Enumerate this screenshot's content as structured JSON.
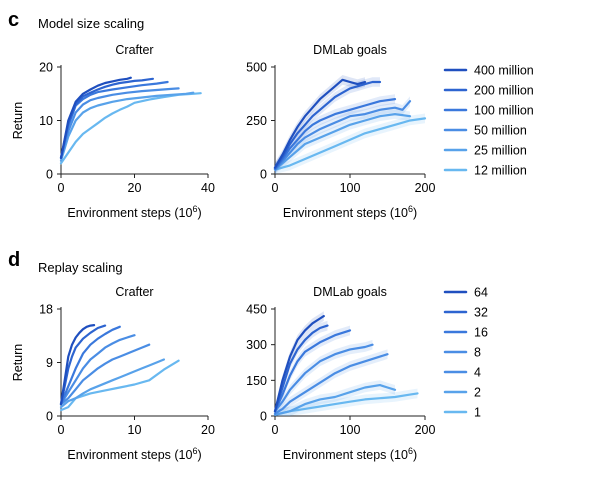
{
  "panels": [
    {
      "letter": "c",
      "title": "Model size scaling"
    },
    {
      "letter": "d",
      "title": "Replay scaling"
    }
  ],
  "xlabel_main": "Environment steps (10",
  "xlabel_exp": "6",
  "xlabel_close": ")",
  "ylabel": "Return",
  "colors": [
    "#1f4fbf",
    "#2d64d0",
    "#3a78dc",
    "#4a8de4",
    "#58a2ea",
    "#68b8f0"
  ],
  "chart_data": [
    {
      "type": "line",
      "id": "c-crafter",
      "title": "Crafter",
      "xlim": [
        0,
        40
      ],
      "xticks": [
        0,
        20,
        40
      ],
      "ylim": [
        0,
        20
      ],
      "yticks": [
        0,
        10,
        20
      ],
      "legend": [
        "400 million",
        "200 million",
        "100 million",
        "50 million",
        "25 million",
        "12 million"
      ],
      "series": [
        {
          "name": "400 million",
          "x": [
            0,
            2,
            4,
            6,
            8,
            10,
            12,
            14,
            16,
            18,
            19
          ],
          "y": [
            3,
            10,
            13.5,
            15,
            15.8,
            16.5,
            17,
            17.3,
            17.6,
            17.8,
            18
          ]
        },
        {
          "name": "200 million",
          "x": [
            0,
            2,
            4,
            6,
            8,
            10,
            12,
            14,
            16,
            18,
            20,
            22,
            24,
            25
          ],
          "y": [
            3,
            9.5,
            13,
            14.5,
            15.2,
            15.8,
            16.3,
            16.7,
            17,
            17.2,
            17.4,
            17.5,
            17.7,
            17.8
          ]
        },
        {
          "name": "100 million",
          "x": [
            0,
            2,
            4,
            6,
            8,
            10,
            14,
            18,
            22,
            26,
            29
          ],
          "y": [
            3,
            9,
            12.8,
            14,
            14.8,
            15.3,
            15.8,
            16.2,
            16.6,
            16.9,
            17.2
          ]
        },
        {
          "name": "50 million",
          "x": [
            0,
            2,
            4,
            6,
            8,
            10,
            14,
            18,
            22,
            26,
            30,
            32
          ],
          "y": [
            3,
            8,
            11.5,
            13,
            13.8,
            14.2,
            14.8,
            15.2,
            15.5,
            15.7,
            15.9,
            16
          ]
        },
        {
          "name": "25 million",
          "x": [
            0,
            2,
            4,
            6,
            8,
            10,
            14,
            18,
            22,
            26,
            30,
            34,
            36
          ],
          "y": [
            2.5,
            7,
            10,
            11.5,
            12.3,
            12.8,
            13.5,
            14,
            14.3,
            14.6,
            14.8,
            15,
            15.2
          ]
        },
        {
          "name": "12 million",
          "x": [
            0,
            2,
            4,
            6,
            8,
            10,
            12,
            14,
            16,
            18,
            20,
            24,
            28,
            32,
            36,
            38
          ],
          "y": [
            2,
            4,
            6,
            7.5,
            8.5,
            9.5,
            10.5,
            11.3,
            12,
            12.6,
            13.3,
            13.9,
            14.4,
            14.8,
            15,
            15.1
          ]
        }
      ]
    },
    {
      "type": "line",
      "id": "c-dmlab",
      "title": "DMLab goals",
      "xlim": [
        0,
        200
      ],
      "xticks": [
        0,
        100,
        200
      ],
      "ylim": [
        0,
        500
      ],
      "yticks": [
        0,
        250,
        500
      ],
      "series": [
        {
          "name": "400 million",
          "x": [
            0,
            10,
            20,
            30,
            40,
            50,
            60,
            70,
            80,
            90,
            100,
            110,
            120
          ],
          "y": [
            30,
            90,
            160,
            220,
            270,
            310,
            350,
            380,
            410,
            440,
            430,
            420,
            430
          ]
        },
        {
          "name": "200 million",
          "x": [
            0,
            10,
            20,
            30,
            40,
            50,
            60,
            70,
            80,
            90,
            100,
            110,
            120,
            130,
            140
          ],
          "y": [
            30,
            80,
            140,
            190,
            230,
            270,
            300,
            330,
            360,
            380,
            400,
            410,
            420,
            430,
            430
          ]
        },
        {
          "name": "100 million",
          "x": [
            0,
            10,
            20,
            30,
            40,
            50,
            60,
            80,
            100,
            120,
            140,
            160
          ],
          "y": [
            25,
            70,
            120,
            160,
            200,
            230,
            250,
            280,
            300,
            320,
            340,
            350
          ]
        },
        {
          "name": "50 million",
          "x": [
            0,
            10,
            20,
            30,
            40,
            60,
            80,
            100,
            120,
            140,
            160,
            170,
            180
          ],
          "y": [
            25,
            60,
            100,
            140,
            170,
            210,
            240,
            270,
            280,
            300,
            310,
            300,
            340
          ]
        },
        {
          "name": "25 million",
          "x": [
            0,
            10,
            20,
            30,
            40,
            60,
            80,
            100,
            120,
            140,
            160,
            180
          ],
          "y": [
            20,
            50,
            80,
            110,
            140,
            170,
            200,
            230,
            250,
            270,
            280,
            270
          ]
        },
        {
          "name": "12 million",
          "x": [
            0,
            20,
            40,
            60,
            80,
            100,
            120,
            140,
            160,
            180,
            200
          ],
          "y": [
            20,
            40,
            70,
            100,
            130,
            160,
            190,
            210,
            230,
            250,
            260
          ]
        }
      ]
    },
    {
      "type": "line",
      "id": "d-crafter",
      "title": "Crafter",
      "xlim": [
        0,
        20
      ],
      "xticks": [
        0,
        10,
        20
      ],
      "ylim": [
        0,
        18
      ],
      "yticks": [
        0,
        9,
        18
      ],
      "legend": [
        "64",
        "32",
        "16",
        "8",
        "4",
        "2",
        "1"
      ],
      "series": [
        {
          "name": "64",
          "x": [
            0,
            0.5,
            1,
            1.5,
            2,
            2.5,
            3,
            3.5,
            4,
            4.5
          ],
          "y": [
            2,
            6,
            10,
            12,
            13.2,
            14,
            14.6,
            15,
            15.2,
            15.3
          ]
        },
        {
          "name": "32",
          "x": [
            0,
            0.5,
            1,
            1.5,
            2,
            3,
            4,
            5,
            6
          ],
          "y": [
            2,
            5,
            8,
            10,
            11.5,
            13,
            14,
            14.8,
            15.2
          ]
        },
        {
          "name": "16",
          "x": [
            0,
            1,
            2,
            3,
            4,
            5,
            6,
            7,
            8
          ],
          "y": [
            2,
            5,
            8,
            10.5,
            12,
            13,
            13.8,
            14.5,
            15
          ]
        },
        {
          "name": "8",
          "x": [
            0,
            1,
            2,
            3,
            4,
            5,
            6,
            7,
            8,
            9,
            10
          ],
          "y": [
            2,
            4,
            6,
            8,
            9.5,
            10.5,
            11.5,
            12.2,
            12.8,
            13.2,
            13.6
          ]
        },
        {
          "name": "4",
          "x": [
            0,
            1,
            2,
            3,
            4,
            5,
            6,
            7,
            8,
            9,
            10,
            11,
            12
          ],
          "y": [
            2,
            3,
            4.5,
            6,
            7,
            8,
            8.8,
            9.5,
            10,
            10.5,
            11,
            11.5,
            12
          ]
        },
        {
          "name": "2",
          "x": [
            0,
            1,
            2,
            3,
            4,
            5,
            6,
            7,
            8,
            9,
            10,
            11,
            12,
            13,
            14
          ],
          "y": [
            1.5,
            2.5,
            3,
            3.8,
            4.5,
            5,
            5.5,
            6,
            6.5,
            7,
            7.5,
            8,
            8.5,
            9,
            9.5
          ]
        },
        {
          "name": "1",
          "x": [
            0,
            1,
            2,
            4,
            6,
            8,
            10,
            12,
            14,
            16
          ],
          "y": [
            1,
            1.5,
            3,
            3.8,
            4.3,
            4.8,
            5.3,
            6,
            7.8,
            9.3
          ]
        }
      ]
    },
    {
      "type": "line",
      "id": "d-dmlab",
      "title": "DMLab goals",
      "xlim": [
        0,
        200
      ],
      "xticks": [
        0,
        100,
        200
      ],
      "ylim": [
        0,
        450
      ],
      "yticks": [
        0,
        150,
        300,
        450
      ],
      "series": [
        {
          "name": "64",
          "x": [
            0,
            10,
            20,
            30,
            40,
            50,
            60,
            65
          ],
          "y": [
            20,
            150,
            250,
            320,
            360,
            390,
            410,
            420
          ]
        },
        {
          "name": "32",
          "x": [
            0,
            10,
            20,
            30,
            40,
            50,
            60,
            70
          ],
          "y": [
            20,
            120,
            220,
            280,
            320,
            350,
            370,
            380
          ]
        },
        {
          "name": "16",
          "x": [
            0,
            10,
            20,
            30,
            40,
            60,
            80,
            100
          ],
          "y": [
            20,
            90,
            170,
            230,
            270,
            310,
            340,
            360
          ]
        },
        {
          "name": "8",
          "x": [
            0,
            10,
            20,
            40,
            60,
            80,
            100,
            120,
            130
          ],
          "y": [
            20,
            60,
            110,
            180,
            230,
            260,
            280,
            290,
            300
          ]
        },
        {
          "name": "4",
          "x": [
            0,
            10,
            20,
            40,
            60,
            80,
            100,
            120,
            140,
            150
          ],
          "y": [
            10,
            30,
            60,
            100,
            140,
            180,
            210,
            230,
            250,
            260
          ]
        },
        {
          "name": "2",
          "x": [
            0,
            20,
            40,
            60,
            80,
            100,
            120,
            140,
            150,
            160
          ],
          "y": [
            5,
            20,
            50,
            70,
            80,
            100,
            120,
            130,
            120,
            110
          ]
        },
        {
          "name": "1",
          "x": [
            0,
            20,
            40,
            60,
            80,
            100,
            120,
            140,
            160,
            180,
            190
          ],
          "y": [
            5,
            20,
            30,
            40,
            50,
            60,
            70,
            75,
            80,
            90,
            95
          ]
        }
      ]
    }
  ]
}
